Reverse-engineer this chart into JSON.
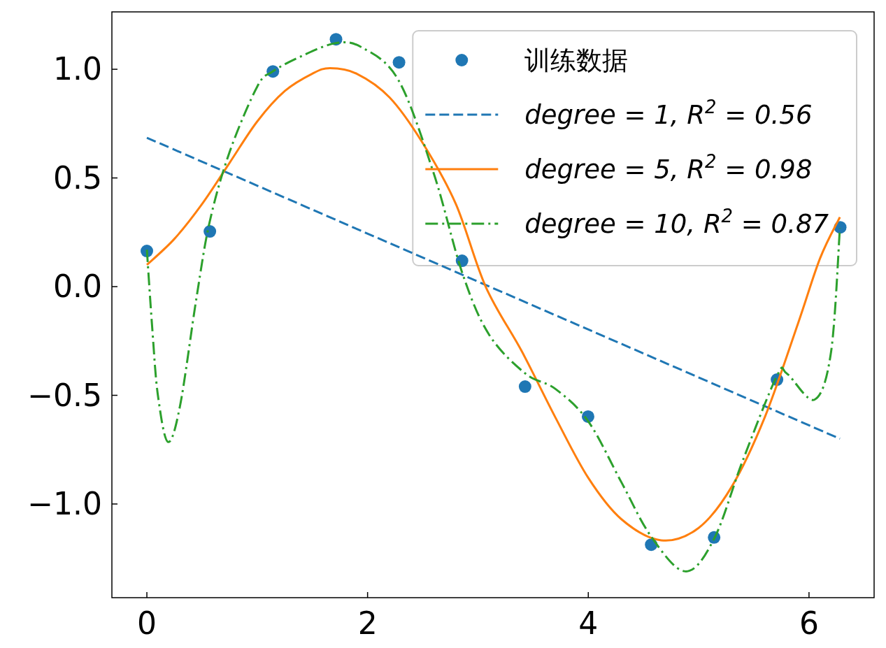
{
  "chart_data": {
    "type": "line",
    "xlim": [
      -0.317,
      6.59
    ],
    "ylim": [
      -1.431,
      1.264
    ],
    "xticks": [
      0,
      2,
      4,
      6
    ],
    "yticks": [
      {
        "value": 1,
        "label": "1.0"
      },
      {
        "value": 0.5,
        "label": "0.5"
      },
      {
        "value": 0,
        "label": "0.0"
      },
      {
        "value": -0.5,
        "label": "−0.5"
      },
      {
        "value": -1,
        "label": "−1.0"
      }
    ],
    "grid": false,
    "legend": "top right",
    "series": [
      {
        "name": "训练数据",
        "type": "scatter",
        "marker": "circle",
        "color": "#1f77b4",
        "x": [
          0,
          0.571,
          1.142,
          1.714,
          2.285,
          2.856,
          3.427,
          3.998,
          4.57,
          5.14,
          5.71,
          6.283
        ],
        "values": [
          0.164,
          0.254,
          0.99,
          1.138,
          1.032,
          0.119,
          -0.46,
          -0.598,
          -1.187,
          -1.154,
          -0.428,
          0.273
        ]
      },
      {
        "name": "degree = 1, R$^{2}$ = 0.56",
        "line_style": "dashed",
        "color": "#1f77b4",
        "x": [
          0,
          6.28
        ],
        "values": [
          0.685,
          -0.7
        ]
      },
      {
        "name": "degree = 5, R$^{2}$ = 0.98",
        "line_style": "solid",
        "color": "#ff7f0e",
        "x": [
          0,
          0.25,
          0.5,
          0.75,
          1.0,
          1.25,
          1.5,
          1.66,
          1.9,
          2.2,
          2.5,
          2.8,
          3.07,
          3.4,
          3.7,
          4.0,
          4.3,
          4.66,
          5.0,
          5.3,
          5.6,
          5.9,
          6.1,
          6.28
        ],
        "values": [
          0.1,
          0.22,
          0.38,
          0.57,
          0.76,
          0.9,
          0.98,
          1.005,
          0.98,
          0.87,
          0.66,
          0.38,
          0.0,
          -0.3,
          -0.6,
          -0.88,
          -1.07,
          -1.167,
          -1.11,
          -0.92,
          -0.6,
          -0.17,
          0.13,
          0.32
        ]
      },
      {
        "name": "degree = 10, R$^{2}$ = 0.87",
        "line_style": "dashdot",
        "color": "#2ca02c",
        "x": [
          0,
          0.05,
          0.1,
          0.19,
          0.3,
          0.45,
          0.57,
          0.75,
          1.0,
          1.14,
          1.4,
          1.71,
          1.95,
          2.28,
          2.6,
          2.86,
          3.1,
          3.43,
          3.7,
          4.0,
          4.3,
          4.57,
          4.88,
          5.14,
          5.4,
          5.71,
          5.8,
          6.05,
          6.2,
          6.28
        ],
        "values": [
          0.17,
          -0.2,
          -0.5,
          -0.714,
          -0.55,
          -0.05,
          0.3,
          0.62,
          0.92,
          0.99,
          1.06,
          1.12,
          1.1,
          0.95,
          0.52,
          0.06,
          -0.22,
          -0.4,
          -0.47,
          -0.62,
          -0.9,
          -1.15,
          -1.31,
          -1.16,
          -0.8,
          -0.41,
          -0.4,
          -0.52,
          -0.3,
          0.27
        ]
      }
    ]
  }
}
